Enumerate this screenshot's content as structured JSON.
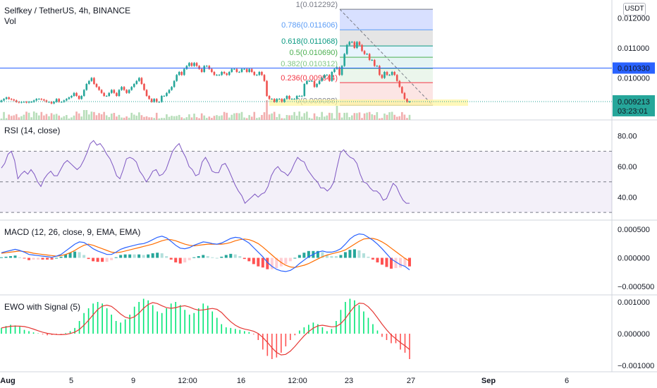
{
  "header": {
    "symbol": "Selfkey / TetherUS, 4h, BINANCE",
    "volume_label": "Vol",
    "currency_button": "USDT"
  },
  "colors": {
    "up": "#26a69a",
    "down": "#ef5350",
    "rsi": "#7e57c2",
    "macd": "#2962ff",
    "signal": "#ff6d00",
    "ewo_up": "#00e676",
    "ewo_down": "#ff5252",
    "ewo_signal": "#e53935",
    "hline": "#2962ff"
  },
  "price_axis": {
    "ticks": [
      "0.012000",
      "0.011000",
      "0.010000"
    ],
    "hline_label": "0.010330",
    "last_price": "0.009213",
    "countdown": "03:23:01"
  },
  "time_axis": {
    "ticks": [
      "Aug",
      "5",
      "9",
      "12:00",
      "16",
      "12:00",
      "23",
      "27",
      "Sep",
      "6"
    ]
  },
  "panes": {
    "rsi": {
      "title": "RSI (14, close)",
      "ticks": [
        "80.00",
        "60.00",
        "40.00"
      ]
    },
    "macd": {
      "title": "MACD (12, 26, close, 9, EMA, EMA)",
      "ticks": [
        "0.000500",
        "0.000000",
        "−0.000500"
      ]
    },
    "ewo": {
      "title": "EWO with Signal (5)",
      "ticks": [
        "0.001000",
        "0.000000",
        "−0.001000"
      ]
    }
  },
  "chart_data": [
    {
      "type": "candlestick",
      "title": "Selfkey / TetherUS, 4h, BINANCE",
      "ylim": [
        0.0086,
        0.0126
      ],
      "horizontal_line": 0.01033,
      "last_price": 0.009213,
      "fibonacci_retracement": [
        {
          "label": "1(0.012292)",
          "value": 0.012292,
          "color": "#787b86",
          "fill": "#d1dbff"
        },
        {
          "label": "0.786(0.011606)",
          "value": 0.011606,
          "color": "#5b9cf6",
          "fill": "#e0e0e0"
        },
        {
          "label": "0.618(0.011068)",
          "value": 0.011068,
          "color": "#089981",
          "fill": "#e3f2fd"
        },
        {
          "label": "0.5(0.010690)",
          "value": 0.01069,
          "color": "#4caf50",
          "fill": "#e0f2f1"
        },
        {
          "label": "0.382(0.010312)",
          "value": 0.010312,
          "color": "#81c784",
          "fill": "#e8f5e9"
        },
        {
          "label": "0.236(0.009844)",
          "value": 0.009844,
          "color": "#f23645",
          "fill": "#f1f8e9"
        },
        {
          "label": "0(0.009088)",
          "value": 0.009088,
          "color": "#787b86",
          "fill": "#fce4e4"
        }
      ],
      "closes": [
        0.00925,
        0.0093,
        0.00935,
        0.0093,
        0.00928,
        0.00925,
        0.0092,
        0.00918,
        0.0092,
        0.0092,
        0.00918,
        0.0092,
        0.0092,
        0.00925,
        0.0093,
        0.0093,
        0.00928,
        0.00925,
        0.0092,
        0.0092,
        0.00915,
        0.0092,
        0.0093,
        0.0092,
        0.0092,
        0.00925,
        0.0093,
        0.00935,
        0.0094,
        0.0095,
        0.0094,
        0.0093,
        0.0094,
        0.0096,
        0.0098,
        0.0099,
        0.01,
        0.0098,
        0.0097,
        0.0096,
        0.0095,
        0.0094,
        0.0094,
        0.0095,
        0.0096,
        0.0095,
        0.0094,
        0.0096,
        0.0097,
        0.0096,
        0.0095,
        0.0096,
        0.0097,
        0.0098,
        0.0099,
        0.01,
        0.0098,
        0.0096,
        0.0094,
        0.0093,
        0.0092,
        0.0093,
        0.0092,
        0.0092,
        0.0094,
        0.0094,
        0.0095,
        0.0096,
        0.0097,
        0.0099,
        0.0101,
        0.0102,
        0.0101,
        0.0103,
        0.0104,
        0.0105,
        0.0104,
        0.0105,
        0.0104,
        0.0103,
        0.0102,
        0.0104,
        0.0104,
        0.0103,
        0.0102,
        0.0101,
        0.0101,
        0.0101,
        0.0102,
        0.01015,
        0.0101,
        0.0102,
        0.0103,
        0.0103,
        0.0102,
        0.0102,
        0.0103,
        0.0103,
        0.0102,
        0.0103,
        0.0102,
        0.0101,
        0.0101,
        0.0102,
        0.0101,
        0.0099,
        0.0094,
        0.0093,
        0.0093,
        0.0092,
        0.0093,
        0.0093,
        0.0092,
        0.0093,
        0.0094,
        0.0093,
        0.0093,
        0.0093,
        0.0094,
        0.0094,
        0.0094,
        0.0098,
        0.0099,
        0.0099,
        0.0099,
        0.0097,
        0.0098,
        0.0099,
        0.01,
        0.0101,
        0.0101,
        0.0099,
        0.0102,
        0.0103,
        0.01035,
        0.0101,
        0.0104,
        0.0108,
        0.0111,
        0.0112,
        0.0112,
        0.011,
        0.0112,
        0.0111,
        0.0109,
        0.0108,
        0.0108,
        0.0106,
        0.0106,
        0.0104,
        0.0104,
        0.0101,
        0.01,
        0.0102,
        0.0101,
        0.0101,
        0.0102,
        0.0101,
        0.0099,
        0.0097,
        0.0095,
        0.0093,
        0.0092,
        0.00921
      ]
    },
    {
      "type": "line",
      "title": "RSI (14, close)",
      "ylim": [
        25,
        90
      ],
      "bands": [
        30,
        50,
        70
      ],
      "values": [
        59,
        62,
        68,
        70,
        64,
        52,
        55,
        57,
        55,
        58,
        55,
        50,
        47,
        52,
        55,
        57,
        54,
        54,
        58,
        62,
        64,
        62,
        60,
        58,
        60,
        64,
        69,
        75,
        77,
        74,
        75,
        72,
        68,
        65,
        60,
        54,
        52,
        58,
        65,
        66,
        65,
        63,
        57,
        54,
        50,
        53,
        57,
        58,
        54,
        55,
        58,
        64,
        70,
        73,
        75,
        70,
        66,
        60,
        58,
        54,
        55,
        63,
        66,
        62,
        57,
        56,
        56,
        61,
        62,
        58,
        53,
        48,
        44,
        41,
        36,
        38,
        40,
        42,
        40,
        42,
        43,
        47,
        54,
        58,
        60,
        57,
        56,
        54,
        57,
        62,
        66,
        64,
        63,
        58,
        55,
        52,
        50,
        46,
        46,
        44,
        46,
        50,
        60,
        69,
        71,
        68,
        66,
        65,
        62,
        55,
        50,
        49,
        46,
        44,
        44,
        42,
        38,
        39,
        44,
        49,
        47,
        42,
        38,
        36,
        36
      ]
    },
    {
      "type": "line",
      "title": "MACD (12, 26, close, 9, EMA, EMA)",
      "ylim": [
        -0.00065,
        0.00065
      ],
      "series": [
        {
          "name": "MACD",
          "values": [
            9e-05,
            0.00011,
            0.00013,
            0.00015,
            0.00013,
            0.0001,
            6e-05,
            5e-05,
            4e-05,
            3e-05,
            2e-05,
            1e-05,
            3e-05,
            6e-05,
            0.00012,
            0.00018,
            0.00024,
            0.00028,
            0.00027,
            0.00022,
            0.00016,
            0.00012,
            9e-05,
            6e-05,
            6e-05,
            0.0001,
            0.00015,
            0.00018,
            0.0002,
            0.00022,
            0.00024,
            0.00025,
            0.00028,
            0.00032,
            0.00036,
            0.00038,
            0.00035,
            0.00029,
            0.00022,
            0.00017,
            0.00016,
            0.00018,
            0.00022,
            0.00025,
            0.00028,
            0.00027,
            0.00025,
            0.00024,
            0.00026,
            0.0003,
            0.00034,
            0.00036,
            0.00035,
            0.00031,
            0.00026,
            0.00018,
            0.0001,
            2e-05,
            -8e-05,
            -0.00015,
            -0.0002,
            -0.00023,
            -0.00024,
            -0.00022,
            -0.00017,
            -0.0001,
            -4e-05,
            2e-05,
            6e-05,
            0.0001,
            0.00012,
            0.0001,
            0.0001,
            0.00012,
            0.00016,
            0.00024,
            0.00033,
            0.00039,
            0.00042,
            0.00041,
            0.00036,
            0.00031,
            0.00024,
            0.00016,
            7e-05,
            -2e-05,
            -7e-05,
            -0.00012,
            -0.00015,
            -0.00021
          ]
        },
        {
          "name": "Signal",
          "values": [
            8e-05,
            9e-05,
            0.0001,
            0.00011,
            0.00012,
            0.00011,
            0.0001,
            8e-05,
            7e-05,
            6e-05,
            5e-05,
            4e-05,
            3e-05,
            4e-05,
            6e-05,
            9e-05,
            0.00013,
            0.00018,
            0.00022,
            0.00024,
            0.00022,
            0.00019,
            0.00016,
            0.00013,
            0.0001,
            9e-05,
            0.0001,
            0.00012,
            0.00014,
            0.00016,
            0.00018,
            0.0002,
            0.00022,
            0.00024,
            0.00027,
            0.0003,
            0.00032,
            0.00032,
            0.0003,
            0.00027,
            0.00024,
            0.00022,
            0.00021,
            0.00022,
            0.00023,
            0.00024,
            0.00024,
            0.00024,
            0.00024,
            0.00025,
            0.00027,
            0.0003,
            0.00032,
            0.00033,
            0.00032,
            0.00029,
            0.00025,
            0.00019,
            0.00012,
            5e-05,
            -2e-05,
            -8e-05,
            -0.00013,
            -0.00016,
            -0.00017,
            -0.00015,
            -0.00013,
            -0.0001,
            -6e-05,
            -2e-05,
            2e-05,
            5e-05,
            7e-05,
            9e-05,
            0.00011,
            0.00014,
            0.00019,
            0.00024,
            0.00029,
            0.00033,
            0.00034,
            0.00034,
            0.00032,
            0.00028,
            0.00023,
            0.00017,
            0.00011,
            5e-05,
            -1e-05,
            -6e-05
          ]
        }
      ]
    },
    {
      "type": "bar",
      "title": "EWO with Signal (5)",
      "ylim": [
        -0.0012,
        0.0012
      ],
      "values": [
        0.00018,
        0.00024,
        0.00028,
        0.00026,
        0.00022,
        0.00012,
        8e-05,
        4e-05,
        1e-05,
        -2e-05,
        -5e-05,
        -4e-05,
        -3e-05,
        -1e-05,
        2e-05,
        8e-05,
        0.00018,
        0.0004,
        0.00065,
        0.0008,
        0.00095,
        0.001,
        0.00095,
        0.0008,
        0.0006,
        0.0004,
        0.00035,
        0.00045,
        0.0006,
        0.00085,
        0.001,
        0.0011,
        0.00105,
        0.0009,
        0.0007,
        0.00065,
        0.0008,
        0.00095,
        0.001,
        0.0009,
        0.00075,
        0.0006,
        0.00065,
        0.0008,
        0.00095,
        0.00088,
        0.0007,
        0.0005,
        0.0003,
        0.0002,
        0.00018,
        0.00015,
        0.00012,
        8e-05,
        5e-05,
        -2e-05,
        -0.0002,
        -0.0005,
        -0.0007,
        -0.0008,
        -0.00075,
        -0.0006,
        -0.0004,
        -0.0002,
        -5e-05,
        0.0001,
        0.0002,
        0.00028,
        0.00035,
        0.0003,
        0.0002,
        8e-05,
        0.00015,
        0.0004,
        0.00075,
        0.001,
        0.0011,
        0.00105,
        0.0009,
        0.0007,
        0.0005,
        0.0003,
        0.0001,
        -0.0001,
        -0.0002,
        -0.0003,
        -0.0003,
        -0.0005,
        -0.0006,
        -0.0008
      ]
    }
  ]
}
